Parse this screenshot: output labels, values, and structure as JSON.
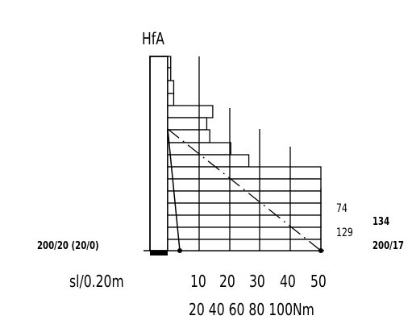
{
  "diagram": {
    "column_label": "HfA",
    "base_level_label": "200/20 (20/0)",
    "right_value_a": "74",
    "right_value_b": "129",
    "right_value_c": "134",
    "right_label_cut": "200/17",
    "scale_label": "sl/0.20m",
    "axis_upper_ticks": [
      "10",
      "20",
      "30",
      "40",
      "50"
    ],
    "axis_lower_label": "20 40 60 80 100Nm",
    "bar_lengths_nm": [
      0.5,
      0.5,
      1,
      1,
      7.5,
      6.5,
      7,
      10.5,
      13.5,
      25.5,
      25.5,
      25.5,
      25.5,
      25.5,
      25.5,
      25.5
    ]
  }
}
